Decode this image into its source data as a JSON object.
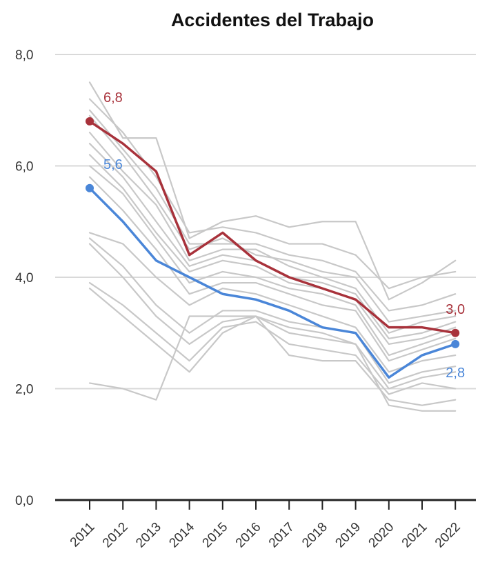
{
  "chart_data": {
    "type": "line",
    "title": "Accidentes del Trabajo",
    "xlabel": "",
    "ylabel": "",
    "categories": [
      "2011",
      "2012",
      "2013",
      "2014",
      "2015",
      "2016",
      "2017",
      "2018",
      "2019",
      "2020",
      "2021",
      "2022"
    ],
    "ylim": [
      0,
      8
    ],
    "yticks": [
      "0,0",
      "2,0",
      "4,0",
      "6,0",
      "8,0"
    ],
    "grid": "horizontal",
    "legend": "none",
    "series": [
      {
        "color": "#a8323b",
        "highlight": true,
        "values": [
          6.8,
          6.4,
          5.9,
          4.4,
          4.8,
          4.3,
          4.0,
          3.8,
          3.6,
          3.1,
          3.1,
          3.0
        ],
        "labels": [
          {
            "index": 0,
            "text": "6,8",
            "position": "above-right"
          },
          {
            "index": 11,
            "text": "3,0",
            "position": "above"
          }
        ]
      },
      {
        "color": "#4a86d8",
        "highlight": true,
        "values": [
          5.6,
          5.0,
          4.3,
          4.0,
          3.7,
          3.6,
          3.4,
          3.1,
          3.0,
          2.2,
          2.6,
          2.8
        ],
        "labels": [
          {
            "index": 0,
            "text": "5,6",
            "position": "above-right"
          },
          {
            "index": 11,
            "text": "2,8",
            "position": "below"
          }
        ]
      },
      {
        "color": "#c8c8c8",
        "values": [
          7.5,
          6.5,
          6.5,
          4.7,
          5.0,
          5.1,
          4.9,
          5.0,
          5.0,
          3.6,
          3.9,
          4.3
        ]
      },
      {
        "color": "#c8c8c8",
        "values": [
          7.2,
          6.6,
          5.8,
          4.8,
          4.9,
          4.8,
          4.6,
          4.6,
          4.4,
          3.8,
          4.0,
          4.1
        ]
      },
      {
        "color": "#c8c8c8",
        "values": [
          7.0,
          6.3,
          5.6,
          4.6,
          4.6,
          4.6,
          4.4,
          4.3,
          4.1,
          3.4,
          3.5,
          3.7
        ]
      },
      {
        "color": "#c8c8c8",
        "values": [
          6.9,
          6.2,
          5.4,
          4.5,
          4.7,
          4.4,
          4.3,
          4.1,
          4.0,
          3.2,
          3.3,
          3.4
        ]
      },
      {
        "color": "#c8c8c8",
        "values": [
          6.6,
          5.9,
          5.3,
          4.3,
          4.5,
          4.5,
          4.2,
          4.0,
          3.8,
          3.0,
          3.2,
          3.3
        ]
      },
      {
        "color": "#c8c8c8",
        "values": [
          6.4,
          5.8,
          5.0,
          4.2,
          4.4,
          4.3,
          4.0,
          3.9,
          3.7,
          2.9,
          3.0,
          3.2
        ]
      },
      {
        "color": "#c8c8c8",
        "values": [
          6.2,
          5.6,
          4.8,
          4.1,
          4.3,
          4.2,
          3.9,
          3.8,
          3.6,
          2.8,
          2.9,
          3.1
        ]
      },
      {
        "color": "#c8c8c8",
        "values": [
          6.0,
          5.5,
          4.7,
          3.9,
          4.1,
          4.0,
          3.8,
          3.7,
          3.5,
          2.6,
          2.8,
          3.0
        ]
      },
      {
        "color": "#c8c8c8",
        "values": [
          5.8,
          5.2,
          4.5,
          3.7,
          3.9,
          3.9,
          3.7,
          3.5,
          3.4,
          2.5,
          2.7,
          2.9
        ]
      },
      {
        "color": "#c8c8c8",
        "values": [
          4.8,
          4.6,
          4.0,
          3.5,
          3.8,
          3.7,
          3.5,
          3.3,
          3.1,
          2.3,
          2.5,
          2.6
        ]
      },
      {
        "color": "#c8c8c8",
        "values": [
          4.7,
          4.2,
          3.5,
          3.0,
          3.4,
          3.4,
          3.2,
          3.1,
          3.0,
          2.1,
          2.3,
          2.4
        ]
      },
      {
        "color": "#c8c8c8",
        "values": [
          4.6,
          4.0,
          3.3,
          2.8,
          3.2,
          3.3,
          3.0,
          2.9,
          2.8,
          2.0,
          2.2,
          2.3
        ]
      },
      {
        "color": "#c8c8c8",
        "values": [
          3.9,
          3.5,
          3.0,
          2.5,
          3.1,
          3.2,
          2.8,
          2.7,
          2.6,
          1.9,
          2.1,
          2.0
        ]
      },
      {
        "color": "#c8c8c8",
        "values": [
          3.8,
          3.3,
          2.8,
          2.3,
          3.0,
          3.3,
          2.6,
          2.5,
          2.5,
          1.8,
          1.7,
          1.8
        ]
      },
      {
        "color": "#c8c8c8",
        "values": [
          2.1,
          2.0,
          1.8,
          3.3,
          3.3,
          3.3,
          3.1,
          3.0,
          2.8,
          1.7,
          1.6,
          1.6
        ]
      }
    ]
  }
}
